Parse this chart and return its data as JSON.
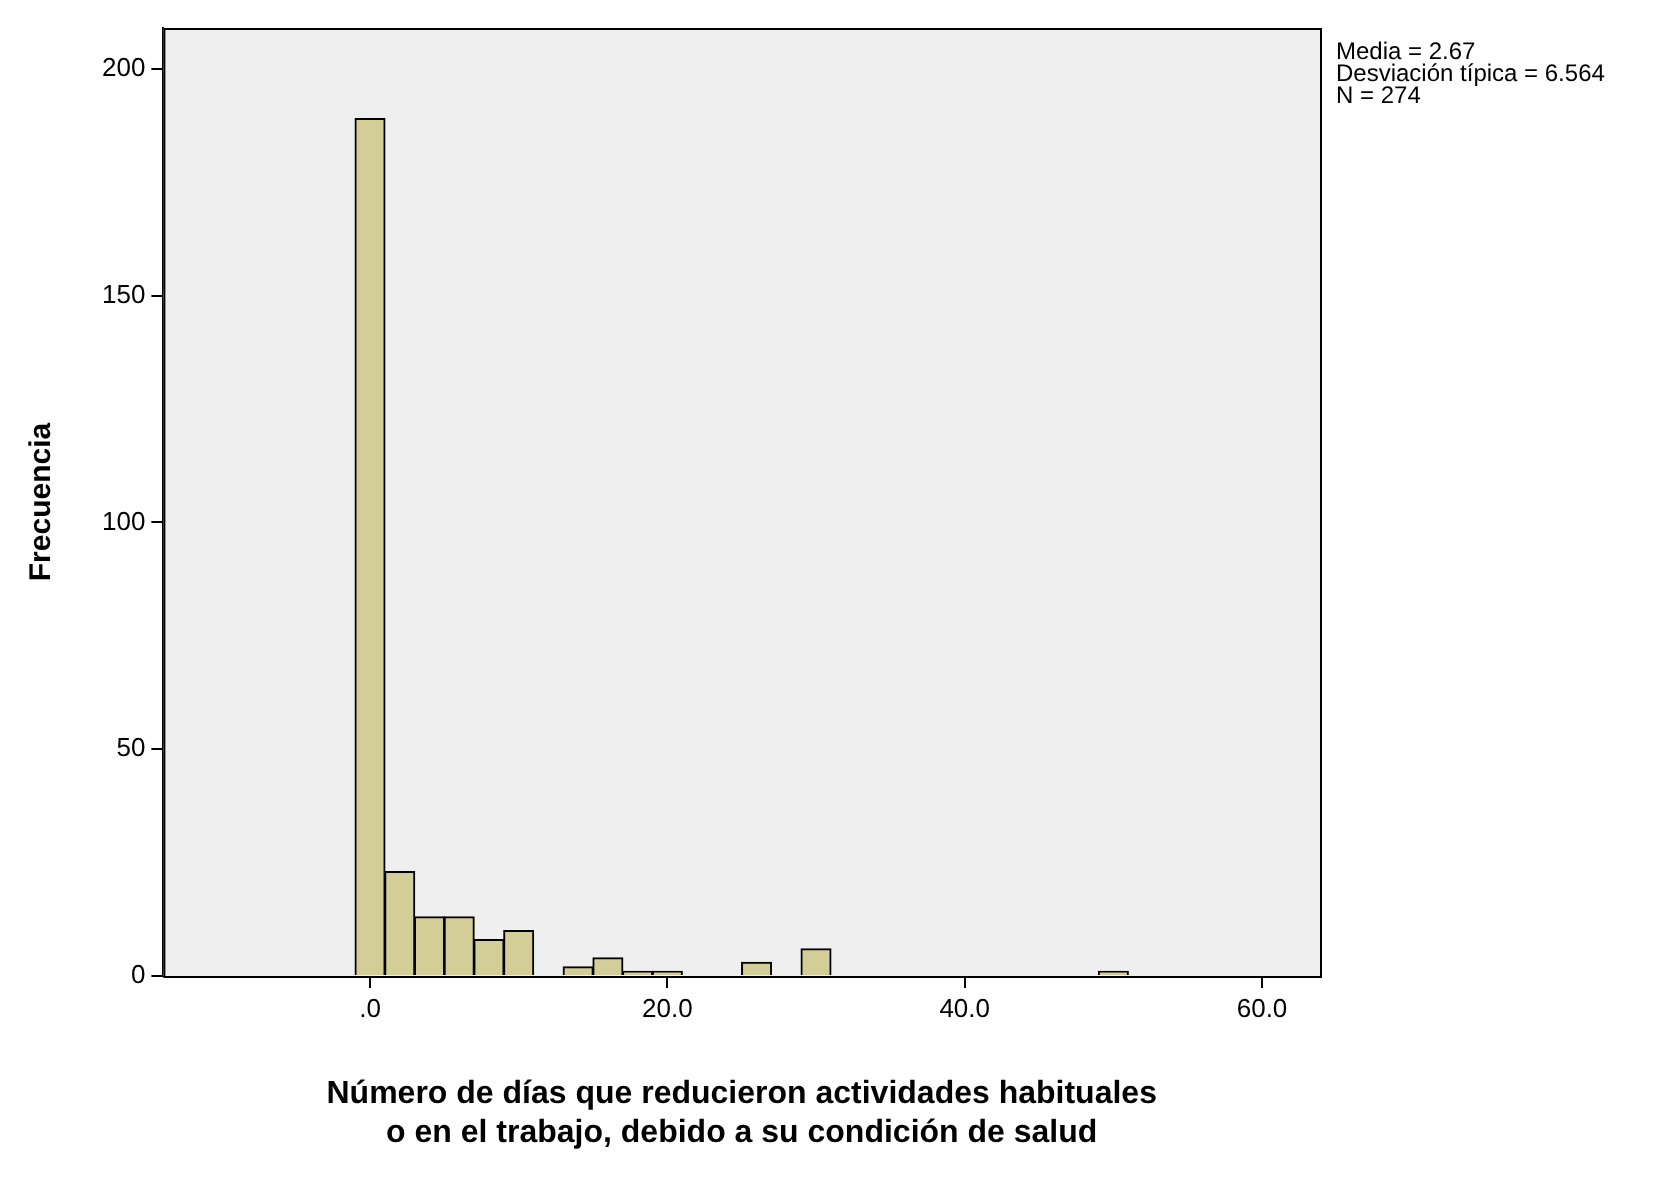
{
  "chart_data": {
    "type": "histogram",
    "bins": [
      -1,
      1,
      3,
      5,
      7,
      9,
      11,
      13,
      15,
      17,
      19,
      21,
      23,
      25,
      27,
      29,
      31,
      33,
      35,
      37,
      39,
      41,
      43,
      45,
      47,
      49,
      51
    ],
    "values": [
      189,
      23,
      13,
      13,
      8,
      10,
      0,
      2,
      4,
      1,
      1,
      0,
      0,
      3,
      0,
      6,
      0,
      0,
      0,
      0,
      0,
      0,
      0,
      0,
      0,
      1
    ],
    "color": "#d3ce97",
    "xlabel": "Número de días que reducieron actividades habituales\no en el trabajo, debido a su condición de salud",
    "ylabel": "Frecuencia",
    "xlim": [
      -13.9,
      63.9
    ],
    "xticks": [
      {
        "value": 0,
        "label": ".0"
      },
      {
        "value": 20,
        "label": "20.0"
      },
      {
        "value": 40,
        "label": "40.0"
      },
      {
        "value": 60,
        "label": "60.0"
      }
    ],
    "ylim": [
      0,
      209
    ],
    "yticks": [
      0,
      50,
      100,
      150,
      200
    ],
    "annotations": [
      "Media = 2.67",
      "Desviación típica = 6.564",
      "N = 274"
    ],
    "legend": false
  }
}
